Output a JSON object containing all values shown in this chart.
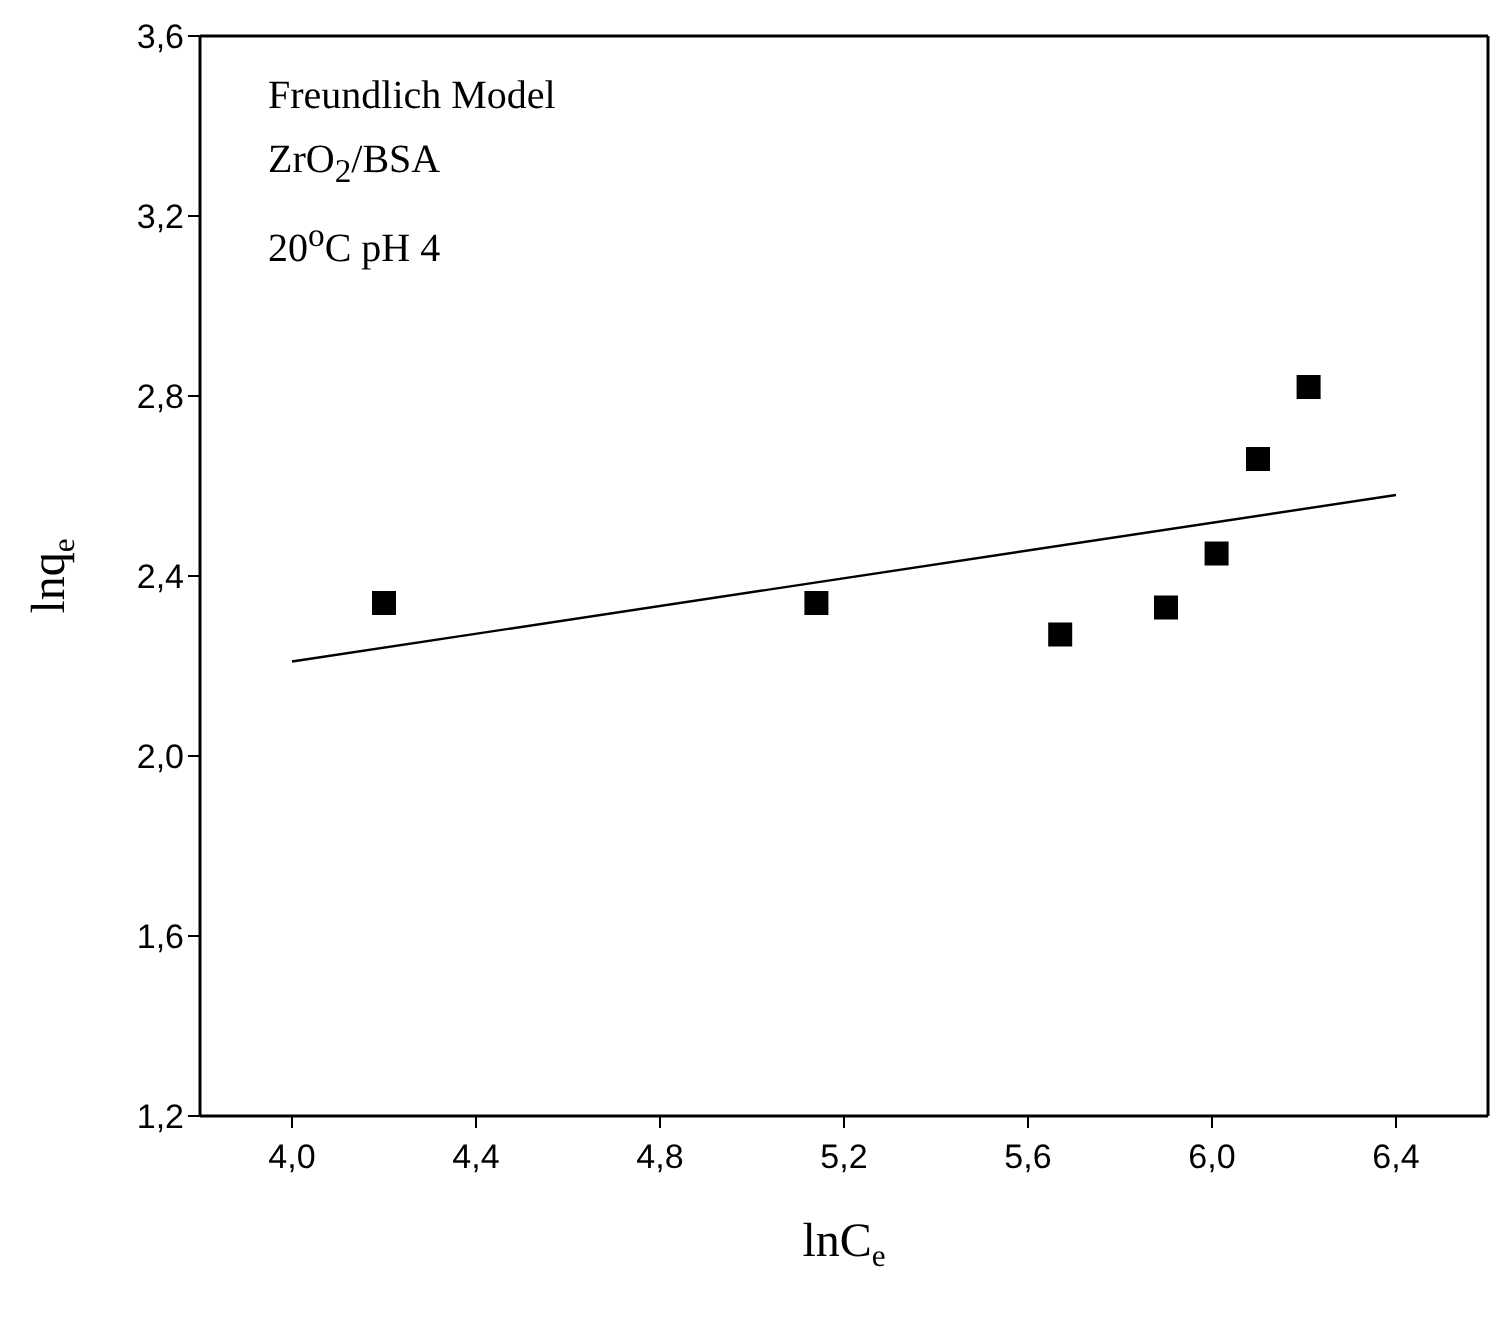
{
  "chart_data": {
    "type": "scatter",
    "xlabel": "lnC$_{e}$",
    "ylabel": "lnq$_{e}$",
    "annotations": [
      "Freundlich Model",
      "ZrO$_{2}$/BSA",
      "20$^{o}$C pH 4"
    ],
    "xlim": [
      3.8,
      6.6
    ],
    "ylim": [
      1.2,
      3.6
    ],
    "xticks": [
      {
        "value": 4.0,
        "label": "4,0"
      },
      {
        "value": 4.4,
        "label": "4,4"
      },
      {
        "value": 4.8,
        "label": "4,8"
      },
      {
        "value": 5.2,
        "label": "5,2"
      },
      {
        "value": 5.6,
        "label": "5,6"
      },
      {
        "value": 6.0,
        "label": "6,0"
      },
      {
        "value": 6.4,
        "label": "6,4"
      }
    ],
    "yticks": [
      {
        "value": 1.2,
        "label": "1,2"
      },
      {
        "value": 1.6,
        "label": "1,6"
      },
      {
        "value": 2.0,
        "label": "2,0"
      },
      {
        "value": 2.4,
        "label": "2,4"
      },
      {
        "value": 2.8,
        "label": "2,8"
      },
      {
        "value": 3.2,
        "label": "3,2"
      },
      {
        "value": 3.6,
        "label": "3,6"
      }
    ],
    "legend": false,
    "series": [
      {
        "color": "#000000",
        "marker": "square",
        "x": [
          4.2,
          5.14,
          5.67,
          5.9,
          6.01,
          6.1,
          6.21
        ],
        "values": [
          2.34,
          2.34,
          2.27,
          2.33,
          2.45,
          2.66,
          2.82
        ]
      },
      {
        "type": "line",
        "color": "#000000",
        "marker": "none",
        "x": [
          4.0,
          6.4
        ],
        "values": [
          2.21,
          2.58
        ]
      }
    ]
  }
}
